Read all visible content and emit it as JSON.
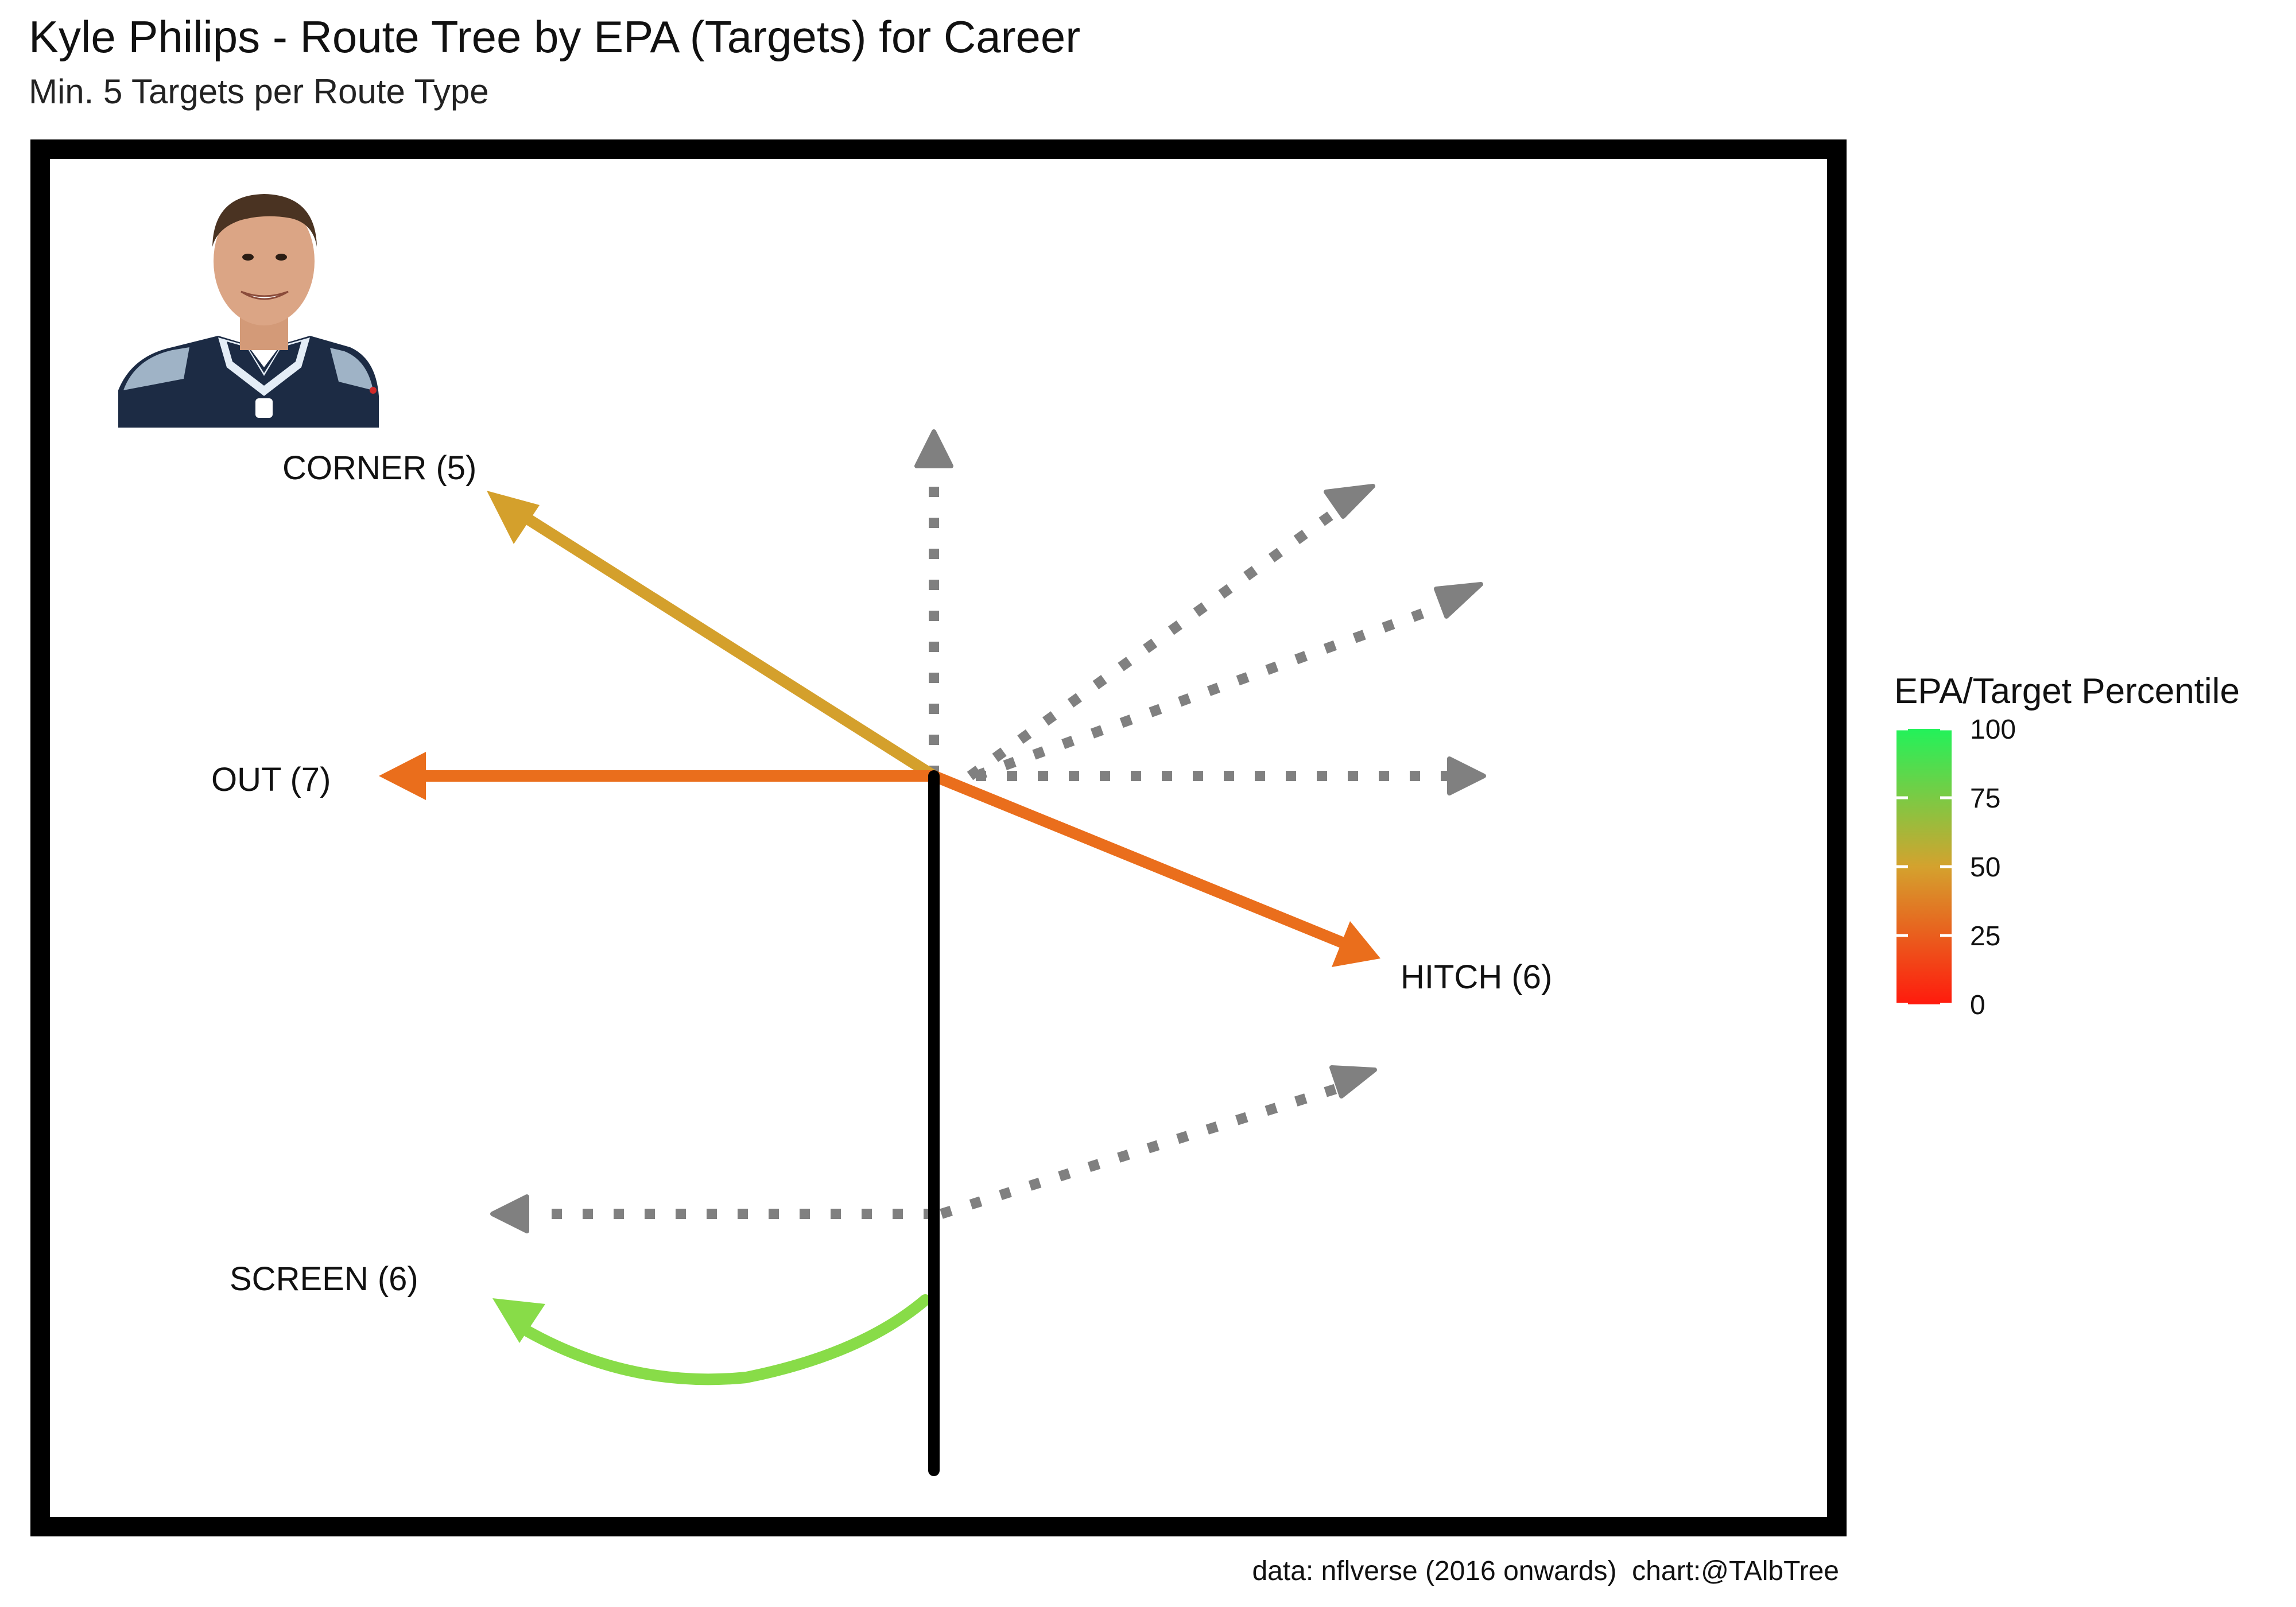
{
  "title": "Kyle Philips - Route Tree by EPA (Targets) for Career",
  "subtitle": "Min. 5 Targets per Route Type",
  "caption": "data: nflverse (2016 onwards)  chart:@TAlbTree",
  "chart_data": {
    "type": "route-tree",
    "legend": {
      "title": "EPA/Target Percentile",
      "ticks": [
        0,
        25,
        50,
        75,
        100
      ],
      "colors": {
        "low": "#ff1a0d",
        "mid": "#d4a22e",
        "high": "#22f25a"
      }
    },
    "routes": [
      {
        "name": "CORNER",
        "targets": 5,
        "label": "CORNER (5)",
        "percentile": 52,
        "color": "#d4a02c"
      },
      {
        "name": "OUT",
        "targets": 7,
        "label": "OUT (7)",
        "percentile": 30,
        "color": "#ea6e1c"
      },
      {
        "name": "HITCH",
        "targets": 6,
        "label": "HITCH (6)",
        "percentile": 30,
        "color": "#ea6e1c"
      },
      {
        "name": "SCREEN",
        "targets": 6,
        "label": "SCREEN (6)",
        "percentile": 82,
        "color": "#88dc48"
      }
    ],
    "placeholder_routes": [
      "GO",
      "POST",
      "SLANT-DEEP",
      "IN",
      "CROSS",
      "FLAT"
    ],
    "placeholder_color": "#808080",
    "stem_color": "#000000",
    "frame_color": "#000000"
  }
}
